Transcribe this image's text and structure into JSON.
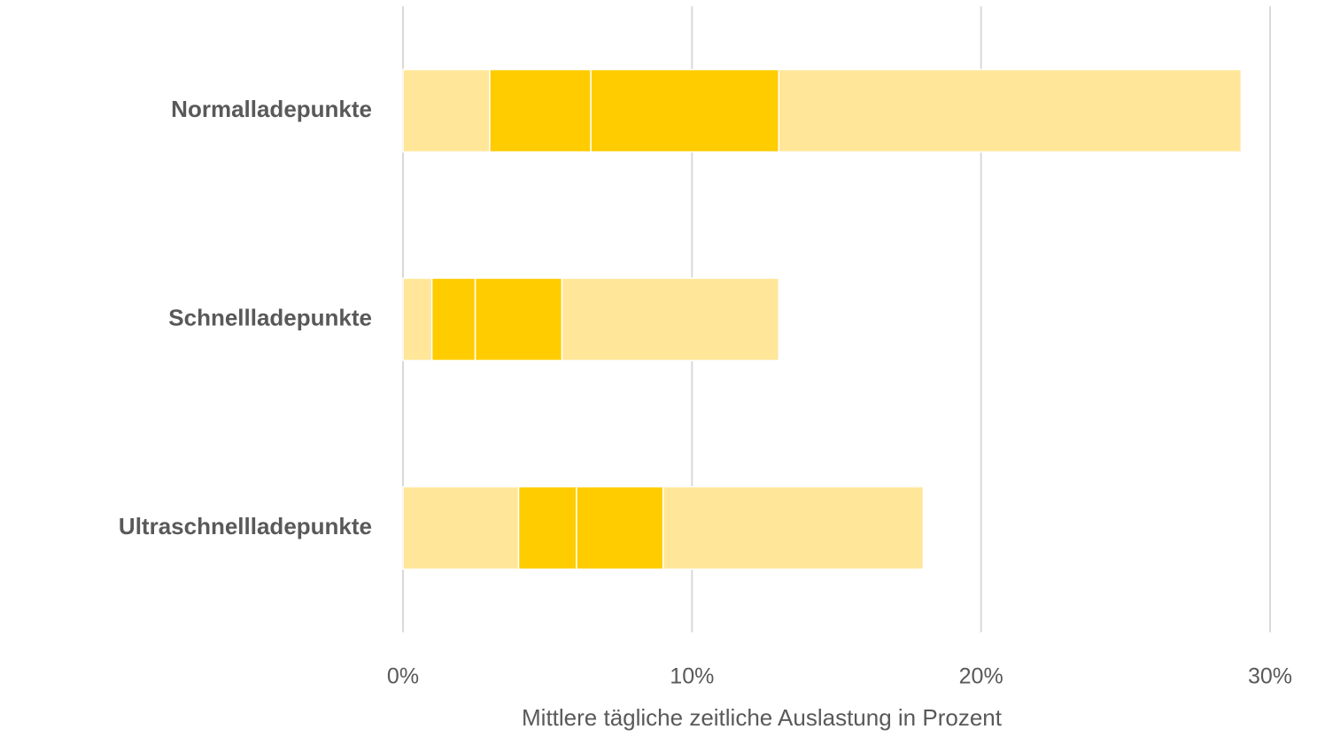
{
  "chart_data": {
    "type": "stacked-bar-horizontal",
    "x_label": "Mittlere tägliche zeitliche Auslastung in Prozent",
    "categories": [
      "Normalladepunkte",
      "Schnellladepunkte",
      "Ultraschnellladepunkte"
    ],
    "series": [
      {
        "color": "#FFE699",
        "values": [
          3,
          1,
          4
        ]
      },
      {
        "color": "#FFCC00",
        "values": [
          3.5,
          1.5,
          2
        ]
      },
      {
        "color": "#FFCC00",
        "values": [
          6.5,
          3,
          3
        ]
      },
      {
        "color": "#FFE699",
        "values": [
          16,
          7.5,
          9
        ]
      }
    ],
    "xlim": [
      0,
      30
    ],
    "xticks": [
      {
        "value": 0,
        "label": "0%"
      },
      {
        "value": 10,
        "label": "10%"
      },
      {
        "value": 20,
        "label": "20%"
      },
      {
        "value": 30,
        "label": "30%"
      }
    ],
    "grid": true
  }
}
